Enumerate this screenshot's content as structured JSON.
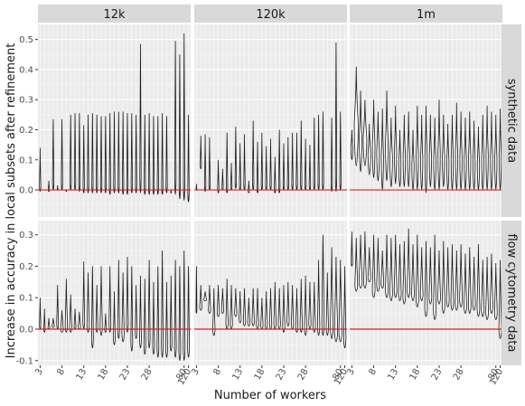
{
  "chart_data": {
    "type": "violin",
    "ylabel": "Increase in accuracy in local subsets after refinement",
    "xlabel": "Number of workers",
    "x_tick_labels": [
      "3",
      "8",
      "13",
      "18",
      "23",
      "28",
      "80",
      "120"
    ],
    "column_facets": [
      "12k",
      "120k",
      "1m"
    ],
    "row_facets": [
      "synthetic data",
      "flow cytometry data"
    ],
    "reference_line": {
      "y": 0,
      "color": "#e41a1c"
    },
    "grid": true,
    "rows": [
      {
        "ylim": [
          -0.09,
          0.55
        ],
        "yticks": [
          0.0,
          0.1,
          0.2,
          0.3,
          0.4,
          0.5
        ],
        "panels": [
          {
            "min": [
              -0.005,
              0.0,
              -0.005,
              0.0,
              0.0,
              0.0,
              -0.005,
              0.0,
              0.0,
              -0.005,
              -0.01,
              -0.01,
              -0.01,
              -0.01,
              -0.01,
              -0.01,
              -0.015,
              -0.01,
              -0.01,
              -0.015,
              -0.015,
              -0.01,
              -0.01,
              -0.01,
              -0.015,
              -0.015,
              -0.015,
              -0.015,
              -0.015,
              -0.01,
              -0.01,
              -0.015,
              -0.03,
              -0.035,
              -0.04
            ],
            "max": [
              0.14,
              0.0,
              0.03,
              0.235,
              0.015,
              0.235,
              0.0,
              0.25,
              0.255,
              0.255,
              0.215,
              0.25,
              0.255,
              0.25,
              0.245,
              0.245,
              0.255,
              0.26,
              0.26,
              0.26,
              0.255,
              0.255,
              0.25,
              0.485,
              0.25,
              0.255,
              0.245,
              0.245,
              0.255,
              0.245,
              0.0,
              0.495,
              0.45,
              0.52,
              0.25
            ],
            "width": [
              0.3,
              0.15,
              0.3,
              0.3,
              0.15,
              0.3,
              0.15,
              0.3,
              0.3,
              0.3,
              0.3,
              0.3,
              0.3,
              0.3,
              0.3,
              0.3,
              0.3,
              0.3,
              0.3,
              0.3,
              0.3,
              0.3,
              0.3,
              0.3,
              0.3,
              0.3,
              0.3,
              0.3,
              0.3,
              0.3,
              0.15,
              0.3,
              0.3,
              0.3,
              0.3
            ]
          },
          {
            "min": [
              0.0,
              0.07,
              -0.005,
              0.0,
              0.0,
              -0.01,
              0.0,
              -0.01,
              0.0,
              0.005,
              0.0,
              0.0,
              -0.01,
              0.0,
              -0.01,
              0.0,
              0.0,
              0.0,
              -0.01,
              -0.01,
              0.0,
              0.0,
              0.0,
              0.0,
              0.0,
              0.0,
              0.0,
              0.0,
              0.0,
              0.0,
              0.0,
              -0.005,
              -0.005,
              0.0,
              0.0
            ],
            "max": [
              0.02,
              0.18,
              0.185,
              0.175,
              0.0,
              0.1,
              0.07,
              0.19,
              0.09,
              0.21,
              0.155,
              0.185,
              0.03,
              0.23,
              0.16,
              0.19,
              0.145,
              0.17,
              0.11,
              0.2,
              0.155,
              0.175,
              0.19,
              0.19,
              0.23,
              0.17,
              0.15,
              0.24,
              0.25,
              0.26,
              0.0,
              0.24,
              0.49,
              0.26,
              0.0
            ],
            "width": [
              0.15,
              0.3,
              0.3,
              0.3,
              0.15,
              0.3,
              0.3,
              0.3,
              0.3,
              0.3,
              0.3,
              0.3,
              0.3,
              0.3,
              0.3,
              0.3,
              0.3,
              0.3,
              0.3,
              0.3,
              0.3,
              0.3,
              0.3,
              0.3,
              0.3,
              0.3,
              0.3,
              0.3,
              0.3,
              0.3,
              0.15,
              0.3,
              0.3,
              0.3,
              0.15
            ]
          },
          {
            "min": [
              0.1,
              0.08,
              0.06,
              0.08,
              0.05,
              0.04,
              0.03,
              0.0,
              0.03,
              0.01,
              0.02,
              0.01,
              0.01,
              0.01,
              0.0,
              0.0,
              0.0,
              -0.01,
              0.01,
              0.0,
              0.0,
              0.01,
              0.0,
              0.0,
              0.0,
              0.0,
              0.0,
              0.0,
              0.0,
              0.0,
              0.0,
              0.0,
              0.0,
              0.0,
              0.0
            ],
            "max": [
              0.2,
              0.41,
              0.33,
              0.3,
              0.22,
              0.3,
              0.26,
              0.27,
              0.33,
              0.24,
              0.28,
              0.2,
              0.25,
              0.26,
              0.2,
              0.28,
              0.25,
              0.28,
              0.25,
              0.24,
              0.3,
              0.25,
              0.22,
              0.25,
              0.29,
              0.26,
              0.24,
              0.26,
              0.23,
              0.21,
              0.25,
              0.28,
              0.26,
              0.25,
              0.27
            ],
            "width": [
              0.4,
              0.9,
              0.6,
              0.8,
              0.6,
              0.6,
              0.6,
              0.5,
              0.6,
              0.6,
              0.5,
              0.5,
              0.5,
              0.5,
              0.5,
              0.5,
              0.5,
              0.5,
              0.5,
              0.5,
              0.5,
              0.5,
              0.5,
              0.5,
              0.5,
              0.5,
              0.5,
              0.5,
              0.5,
              0.5,
              0.5,
              0.5,
              0.5,
              0.5,
              0.5
            ]
          }
        ]
      },
      {
        "ylim": [
          -0.115,
          0.345
        ],
        "yticks": [
          -0.1,
          0.0,
          0.1,
          0.2,
          0.3
        ],
        "panels": [
          {
            "min": [
              0.0,
              -0.01,
              0.0,
              0.005,
              0.0,
              -0.01,
              -0.01,
              -0.01,
              0.0,
              0.0,
              0.0,
              -0.01,
              -0.06,
              -0.01,
              -0.02,
              -0.01,
              -0.01,
              -0.05,
              -0.03,
              -0.04,
              -0.01,
              -0.07,
              -0.03,
              -0.06,
              -0.08,
              -0.06,
              -0.08,
              -0.09,
              -0.09,
              -0.09,
              -0.07,
              -0.09,
              -0.1,
              -0.1,
              -0.09
            ],
            "max": [
              0.1,
              0.065,
              0.035,
              0.035,
              0.14,
              0.06,
              0.16,
              0.11,
              0.065,
              0.055,
              0.215,
              0.18,
              0.2,
              0.14,
              0.2,
              0.05,
              0.2,
              0.12,
              0.22,
              0.18,
              0.23,
              0.2,
              0.14,
              0.17,
              0.16,
              0.22,
              0.15,
              0.2,
              0.25,
              0.15,
              0.17,
              0.22,
              0.2,
              0.25,
              0.2
            ],
            "width": [
              0.3,
              0.3,
              0.4,
              0.5,
              0.4,
              0.6,
              0.5,
              0.5,
              0.4,
              0.5,
              0.4,
              0.5,
              0.4,
              0.4,
              0.5,
              0.4,
              0.4,
              0.4,
              0.4,
              0.5,
              0.4,
              0.4,
              0.4,
              0.4,
              0.4,
              0.4,
              0.4,
              0.4,
              0.4,
              0.4,
              0.4,
              0.4,
              0.4,
              0.4,
              0.4
            ]
          },
          {
            "min": [
              0.05,
              0.06,
              0.09,
              0.05,
              -0.02,
              0.04,
              0.05,
              0.0,
              0.0,
              0.04,
              0.02,
              0.01,
              0.01,
              0.01,
              0.0,
              0.0,
              0.0,
              0.0,
              0.0,
              0.0,
              -0.01,
              0.01,
              0.0,
              -0.01,
              -0.01,
              -0.02,
              0.0,
              -0.01,
              -0.02,
              -0.02,
              -0.02,
              -0.03,
              -0.04,
              -0.04,
              -0.06
            ],
            "max": [
              0.2,
              0.14,
              0.12,
              0.14,
              0.13,
              0.14,
              0.13,
              0.16,
              0.14,
              0.13,
              0.12,
              0.13,
              0.1,
              0.13,
              0.13,
              0.1,
              0.12,
              0.13,
              0.15,
              0.13,
              0.14,
              0.15,
              0.14,
              0.13,
              0.16,
              0.17,
              0.15,
              0.15,
              0.22,
              0.3,
              0.18,
              0.26,
              0.23,
              0.22,
              0.2
            ],
            "width": [
              0.2,
              0.5,
              0.6,
              0.5,
              0.5,
              0.5,
              0.5,
              0.5,
              0.5,
              0.5,
              0.5,
              0.5,
              0.5,
              0.5,
              0.5,
              0.5,
              0.5,
              0.5,
              0.5,
              0.5,
              0.5,
              0.5,
              0.5,
              0.5,
              0.5,
              0.5,
              0.5,
              0.5,
              0.5,
              0.5,
              0.5,
              0.6,
              0.7,
              0.7,
              0.5
            ]
          },
          {
            "min": [
              0.2,
              0.12,
              0.13,
              0.13,
              0.15,
              0.1,
              0.12,
              0.13,
              0.1,
              0.09,
              0.1,
              0.09,
              0.08,
              0.1,
              0.09,
              0.07,
              0.09,
              0.04,
              0.08,
              0.03,
              0.08,
              0.05,
              0.07,
              0.06,
              0.06,
              0.07,
              0.05,
              0.05,
              0.06,
              0.04,
              0.04,
              0.03,
              0.05,
              0.03,
              -0.03
            ],
            "max": [
              0.31,
              0.29,
              0.3,
              0.31,
              0.26,
              0.3,
              0.29,
              0.25,
              0.3,
              0.29,
              0.3,
              0.27,
              0.28,
              0.32,
              0.27,
              0.3,
              0.26,
              0.28,
              0.26,
              0.3,
              0.25,
              0.28,
              0.26,
              0.27,
              0.25,
              0.27,
              0.24,
              0.26,
              0.23,
              0.27,
              0.22,
              0.23,
              0.24,
              0.21,
              0.22
            ],
            "width": [
              0.3,
              0.6,
              0.7,
              0.6,
              0.6,
              0.6,
              0.6,
              0.6,
              0.6,
              0.6,
              0.6,
              0.6,
              0.6,
              0.6,
              0.6,
              0.6,
              0.6,
              0.6,
              0.6,
              0.6,
              0.6,
              0.6,
              0.6,
              0.6,
              0.6,
              0.6,
              0.6,
              0.6,
              0.6,
              0.6,
              0.6,
              0.6,
              0.6,
              0.6,
              0.6
            ]
          }
        ]
      }
    ]
  }
}
